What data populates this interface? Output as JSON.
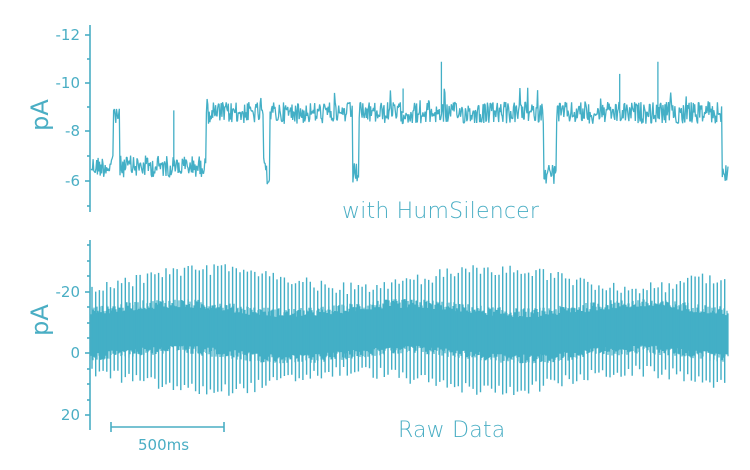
{
  "colors": {
    "trace": "#43afc6",
    "axis": "#4aaec4",
    "text": "#4aaec4",
    "background": "#ffffff"
  },
  "chart_data": [
    {
      "type": "line",
      "title": "with HumSilencer",
      "ylabel": "pA",
      "xlabel": "",
      "yaxis_inverted": true,
      "ylim": [
        -4.8,
        -12.6
      ],
      "yticks": [
        -12,
        -10,
        -8,
        -6
      ],
      "ytick_labels": [
        "-12",
        "-10",
        "-8",
        "-6"
      ],
      "grid": false,
      "description": "Single-channel current recording with HumSilencer: baseline near -6.5 pA with step transitions to ~-8.8 pA open level; occasional spikes up to ~-10.8 pA",
      "segments": [
        {
          "x_start": 0.0,
          "x_end": 0.035,
          "level": -6.6
        },
        {
          "x_start": 0.035,
          "x_end": 0.045,
          "level": -8.7
        },
        {
          "x_start": 0.045,
          "x_end": 0.18,
          "level": -6.6
        },
        {
          "x_start": 0.18,
          "x_end": 0.27,
          "level": -8.8
        },
        {
          "x_start": 0.27,
          "x_end": 0.28,
          "level": -6.3
        },
        {
          "x_start": 0.28,
          "x_end": 0.41,
          "level": -8.8
        },
        {
          "x_start": 0.41,
          "x_end": 0.42,
          "level": -6.3
        },
        {
          "x_start": 0.42,
          "x_end": 0.71,
          "level": -8.8
        },
        {
          "x_start": 0.71,
          "x_end": 0.73,
          "level": -6.3
        },
        {
          "x_start": 0.73,
          "x_end": 0.99,
          "level": -8.8
        },
        {
          "x_start": 0.99,
          "x_end": 1.0,
          "level": -6.3
        }
      ],
      "spikes": [
        {
          "x": 0.13,
          "value": -8.9
        },
        {
          "x": 0.49,
          "value": -9.8
        },
        {
          "x": 0.55,
          "value": -10.9
        },
        {
          "x": 0.83,
          "value": -10.4
        },
        {
          "x": 0.89,
          "value": -10.9
        }
      ]
    },
    {
      "type": "line",
      "title": "Raw Data",
      "ylabel": "pA",
      "xlabel": "",
      "yaxis_inverted": true,
      "ylim": [
        24,
        -37
      ],
      "yticks": [
        -20,
        0,
        20
      ],
      "ytick_labels": [
        "-20",
        "0",
        "20"
      ],
      "grid": false,
      "description": "Raw current trace dominated by periodic line-frequency hum spikes (~60 Hz) with amplitude roughly -28 pA to +14 pA around a baseline of about -7 pA",
      "baseline": -7,
      "spike_max": -29,
      "spike_min": 14,
      "hum_frequency_hz": 60
    }
  ],
  "scalebar": {
    "label": "500ms",
    "duration_ms": 500
  },
  "panels": {
    "top": {
      "ylabel": "pA",
      "caption": "with HumSilencer",
      "ticks": [
        {
          "label": "-12"
        },
        {
          "label": "-10"
        },
        {
          "label": "-8"
        },
        {
          "label": "-6"
        }
      ]
    },
    "bottom": {
      "ylabel": "pA",
      "caption": "Raw Data",
      "ticks": [
        {
          "label": "-20"
        },
        {
          "label": "0"
        },
        {
          "label": "20"
        }
      ]
    }
  }
}
